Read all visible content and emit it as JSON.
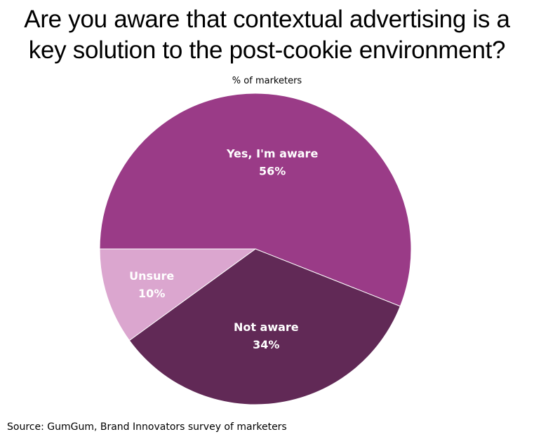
{
  "chart_data": {
    "type": "pie",
    "title": "Are you aware that contextual advertising is a key solution to the post-cookie environment?",
    "title_lines": [
      "Are you aware that contextual advertising is a",
      "key solution to the post-cookie environment?"
    ],
    "subtitle": "% of marketers",
    "slices": [
      {
        "label": "Yes, I'm aware",
        "value": 56,
        "value_label": "56%",
        "color": "#9a3b87"
      },
      {
        "label": "Not aware",
        "value": 34,
        "value_label": "34%",
        "color": "#612956"
      },
      {
        "label": "Unsure",
        "value": 10,
        "value_label": "10%",
        "color": "#dba6cf"
      }
    ],
    "legend": "none",
    "source": "Source: GumGum, Brand Innovators survey of marketers"
  }
}
